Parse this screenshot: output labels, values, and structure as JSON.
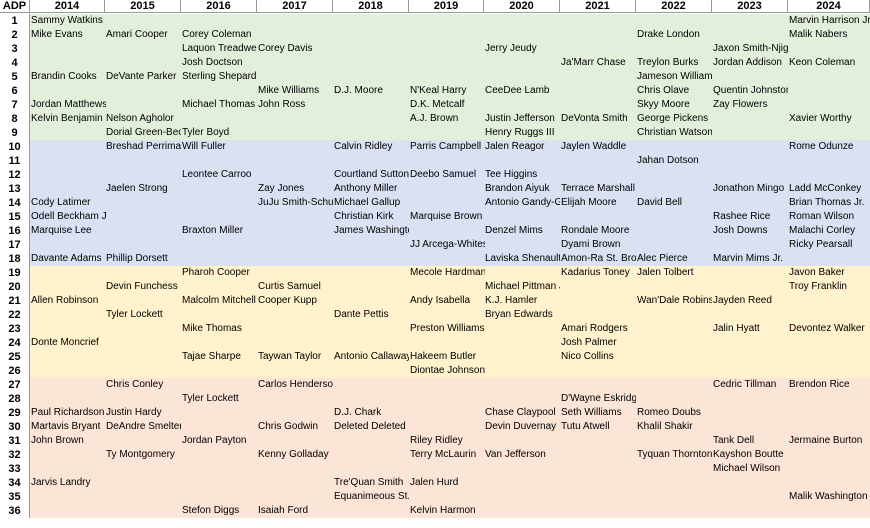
{
  "header": {
    "adp_label": "ADP",
    "years": [
      "2014",
      "2015",
      "2016",
      "2017",
      "2018",
      "2019",
      "2020",
      "2021",
      "2022",
      "2023",
      "2024"
    ]
  },
  "tier_colors": [
    "#e2efda",
    "#d9e1f2",
    "#fff2cc",
    "#fce4d6"
  ],
  "rows": [
    {
      "adp": "1",
      "tier": 0,
      "cells": [
        "Sammy Watkins",
        "",
        "",
        "",
        "",
        "",
        "",
        "",
        "",
        "",
        "Marvin Harrison Jr."
      ]
    },
    {
      "adp": "2",
      "tier": 0,
      "cells": [
        "Mike Evans",
        "Amari Cooper",
        "Corey Coleman",
        "",
        "",
        "",
        "",
        "",
        "Drake London",
        "",
        "Malik Nabers"
      ]
    },
    {
      "adp": "3",
      "tier": 0,
      "cells": [
        "",
        "",
        "Laquon Treadwell",
        "Corey Davis",
        "",
        "",
        "Jerry Jeudy",
        "",
        "",
        "Jaxon Smith-Njigba",
        ""
      ]
    },
    {
      "adp": "4",
      "tier": 0,
      "cells": [
        "",
        "",
        "Josh Doctson",
        "",
        "",
        "",
        "",
        "Ja'Marr Chase",
        "Treylon Burks",
        "Jordan Addison",
        "Keon Coleman"
      ]
    },
    {
      "adp": "5",
      "tier": 0,
      "cells": [
        "Brandin Cooks",
        "DeVante Parker",
        "Sterling Shepard",
        "",
        "",
        "",
        "",
        "",
        "Jameson Williams",
        "",
        ""
      ]
    },
    {
      "adp": "6",
      "tier": 0,
      "cells": [
        "",
        "",
        "",
        "Mike Williams",
        "D.J. Moore",
        "N'Keal Harry",
        "CeeDee Lamb",
        "",
        "Chris Olave",
        "Quentin Johnston",
        ""
      ]
    },
    {
      "adp": "7",
      "tier": 0,
      "cells": [
        "Jordan Matthews",
        "",
        "Michael Thomas",
        "John Ross",
        "",
        "D.K. Metcalf",
        "",
        "",
        "Skyy Moore",
        "Zay Flowers",
        ""
      ]
    },
    {
      "adp": "8",
      "tier": 0,
      "cells": [
        "Kelvin Benjamin",
        "Nelson Agholor",
        "",
        "",
        "",
        "A.J. Brown",
        "Justin Jefferson",
        "DeVonta Smith",
        "George Pickens",
        "",
        "Xavier Worthy"
      ]
    },
    {
      "adp": "9",
      "tier": 0,
      "cells": [
        "",
        "Dorial Green-Beckham",
        "Tyler Boyd",
        "",
        "",
        "",
        "Henry Ruggs III",
        "",
        "Christian Watson",
        "",
        ""
      ]
    },
    {
      "adp": "10",
      "tier": 1,
      "cells": [
        "",
        "Breshad Perriman",
        "Will Fuller",
        "",
        "Calvin Ridley",
        "Parris Campbell",
        "Jalen Reagor",
        "Jaylen Waddle",
        "",
        "",
        "Rome Odunze"
      ]
    },
    {
      "adp": "11",
      "tier": 1,
      "cells": [
        "",
        "",
        "",
        "",
        "",
        "",
        "",
        "",
        "Jahan Dotson",
        "",
        ""
      ]
    },
    {
      "adp": "12",
      "tier": 1,
      "cells": [
        "",
        "",
        "Leontee Carroo",
        "",
        "Courtland Sutton",
        "Deebo Samuel",
        "Tee Higgins",
        "",
        "",
        "",
        ""
      ]
    },
    {
      "adp": "13",
      "tier": 1,
      "cells": [
        "",
        "Jaelen Strong",
        "",
        "Zay Jones",
        "Anthony Miller",
        "",
        "Brandon Aiyuk",
        "Terrace Marshall Jr.",
        "",
        "Jonathon Mingo",
        "Ladd McConkey"
      ]
    },
    {
      "adp": "14",
      "tier": 1,
      "cells": [
        "Cody Latimer",
        "",
        "",
        "JuJu Smith-Schuster",
        "Michael Gallup",
        "",
        "Antonio Gandy-Golden",
        "Elijah Moore",
        "David Bell",
        "",
        "Brian Thomas Jr."
      ]
    },
    {
      "adp": "15",
      "tier": 1,
      "cells": [
        "Odell Beckham Jr.",
        "",
        "",
        "",
        "Christian Kirk",
        "Marquise Brown",
        "",
        "",
        "",
        "Rashee Rice",
        "Roman Wilson"
      ]
    },
    {
      "adp": "16",
      "tier": 1,
      "cells": [
        "Marquise Lee",
        "",
        "Braxton Miller",
        "",
        "James Washington",
        "",
        "Denzel Mims",
        "Rondale Moore",
        "",
        "Josh Downs",
        "Malachi Corley"
      ]
    },
    {
      "adp": "17",
      "tier": 1,
      "cells": [
        "",
        "",
        "",
        "",
        "",
        "JJ Arcega-Whiteside",
        "",
        "Dyami Brown",
        "",
        "",
        "Ricky Pearsall"
      ]
    },
    {
      "adp": "18",
      "tier": 1,
      "cells": [
        "Davante Adams",
        "Phillip Dorsett",
        "",
        "",
        "",
        "",
        "Laviska Shenault Jr.",
        "Amon-Ra St. Brown",
        "Alec Pierce",
        "Marvin Mims Jr.",
        ""
      ]
    },
    {
      "adp": "19",
      "tier": 2,
      "cells": [
        "",
        "",
        "Pharoh Cooper",
        "",
        "",
        "Mecole Hardman",
        "",
        "Kadarius Toney",
        "Jalen Tolbert",
        "",
        "Javon Baker"
      ]
    },
    {
      "adp": "20",
      "tier": 2,
      "cells": [
        "",
        "Devin Funchess",
        "",
        "Curtis Samuel",
        "",
        "",
        "Michael Pittman Jr.",
        "",
        "",
        "",
        "Troy Franklin"
      ]
    },
    {
      "adp": "21",
      "tier": 2,
      "cells": [
        "Allen Robinson",
        "",
        "Malcolm Mitchell",
        "Cooper Kupp",
        "",
        "Andy Isabella",
        "K.J. Hamler",
        "",
        "Wan'Dale Robinson",
        "Jayden Reed",
        ""
      ]
    },
    {
      "adp": "22",
      "tier": 2,
      "cells": [
        "",
        "Tyler Lockett",
        "",
        "",
        "Dante Pettis",
        "",
        "Bryan Edwards",
        "",
        "",
        "",
        ""
      ]
    },
    {
      "adp": "23",
      "tier": 2,
      "cells": [
        "",
        "",
        "Mike Thomas",
        "",
        "",
        "Preston Williams",
        "",
        "Amari Rodgers",
        "",
        "Jalin Hyatt",
        "Devontez Walker"
      ]
    },
    {
      "adp": "24",
      "tier": 2,
      "cells": [
        "Donte Moncrief",
        "",
        "",
        "",
        "",
        "",
        "",
        "Josh Palmer",
        "",
        "",
        ""
      ]
    },
    {
      "adp": "25",
      "tier": 2,
      "cells": [
        "",
        "",
        "Tajae Sharpe",
        "Taywan Taylor",
        "Antonio Callaway",
        "Hakeem Butler",
        "",
        "Nico Collins",
        "",
        "",
        ""
      ]
    },
    {
      "adp": "26",
      "tier": 2,
      "cells": [
        "",
        "",
        "",
        "",
        "",
        "Diontae Johnson",
        "",
        "",
        "",
        "",
        ""
      ]
    },
    {
      "adp": "27",
      "tier": 3,
      "cells": [
        "",
        "Chris Conley",
        "",
        "Carlos Henderson",
        "",
        "",
        "",
        "",
        "",
        "Cedric Tillman",
        "Brendon Rice"
      ]
    },
    {
      "adp": "28",
      "tier": 3,
      "cells": [
        "",
        "",
        "Tyler Lockett",
        "",
        "",
        "",
        "",
        "D'Wayne Eskridge",
        "",
        "",
        ""
      ]
    },
    {
      "adp": "29",
      "tier": 3,
      "cells": [
        "Paul Richardson",
        "Justin Hardy",
        "",
        "",
        "D.J. Chark",
        "",
        "Chase Claypool",
        "Seth Williams",
        "Romeo Doubs",
        "",
        ""
      ]
    },
    {
      "adp": "30",
      "tier": 3,
      "cells": [
        "Martavis Bryant",
        "DeAndre Smelter",
        "",
        "Chris Godwin",
        "Deleted Deleted",
        "",
        "Devin Duvernay",
        "Tutu Atwell",
        "Khalil Shakir",
        "",
        ""
      ]
    },
    {
      "adp": "31",
      "tier": 3,
      "cells": [
        "John Brown",
        "",
        "Jordan Payton",
        "",
        "",
        "Riley Ridley",
        "",
        "",
        "",
        "Tank Dell",
        "Jermaine Burton"
      ]
    },
    {
      "adp": "32",
      "tier": 3,
      "cells": [
        "",
        "Ty Montgomery",
        "",
        "Kenny Golladay",
        "",
        "Terry McLaurin",
        "Van Jefferson",
        "",
        "Tyquan Thornton",
        "Kayshon Boutte",
        ""
      ]
    },
    {
      "adp": "33",
      "tier": 3,
      "cells": [
        "",
        "",
        "",
        "",
        "",
        "",
        "",
        "",
        "",
        "Michael Wilson",
        ""
      ]
    },
    {
      "adp": "34",
      "tier": 3,
      "cells": [
        "Jarvis Landry",
        "",
        "",
        "",
        "Tre'Quan Smith",
        "Jalen Hurd",
        "",
        "",
        "",
        "",
        ""
      ]
    },
    {
      "adp": "35",
      "tier": 3,
      "cells": [
        "",
        "",
        "",
        "",
        "Equanimeous St. Brown",
        "",
        "",
        "",
        "",
        "",
        "Malik Washington"
      ]
    },
    {
      "adp": "36",
      "tier": 3,
      "cells": [
        "",
        "",
        "Stefon Diggs",
        "Isaiah Ford",
        "",
        "Kelvin Harmon",
        "",
        "",
        "",
        "",
        ""
      ]
    }
  ]
}
